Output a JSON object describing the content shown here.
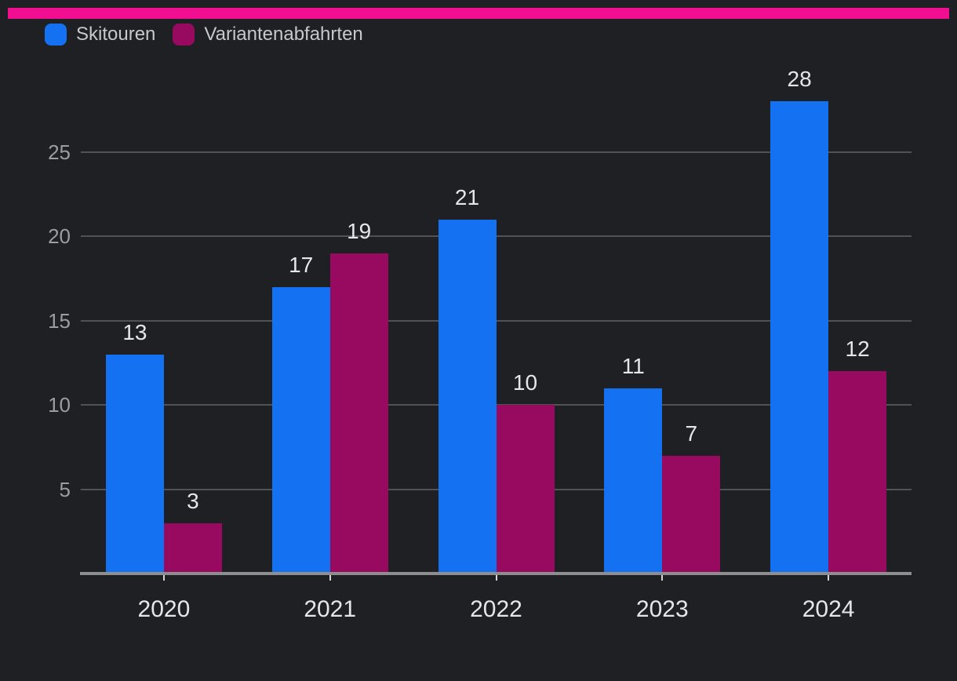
{
  "accent_bar": {
    "color": "#f20e90"
  },
  "legend": {
    "items": [
      {
        "label": "Skitouren",
        "color": "#1471f2"
      },
      {
        "label": "Variantenabfahrten",
        "color": "#970a60"
      }
    ]
  },
  "chart_data": {
    "type": "bar",
    "title": "",
    "xlabel": "",
    "ylabel": "",
    "categories": [
      "2020",
      "2021",
      "2022",
      "2023",
      "2024"
    ],
    "series": [
      {
        "name": "Skitouren",
        "color": "#1471f2",
        "values": [
          13,
          17,
          21,
          11,
          28
        ]
      },
      {
        "name": "Variantenabfahrten",
        "color": "#970a60",
        "values": [
          3,
          19,
          10,
          7,
          12
        ]
      }
    ],
    "y_ticks": [
      5,
      10,
      15,
      20,
      25
    ],
    "ylim": [
      0,
      28
    ],
    "grid": true,
    "legend_position": "top-left",
    "value_labels_shown": true,
    "background": "#1e2024",
    "grid_color": "#515257",
    "axis_color": "#8e8e90"
  }
}
